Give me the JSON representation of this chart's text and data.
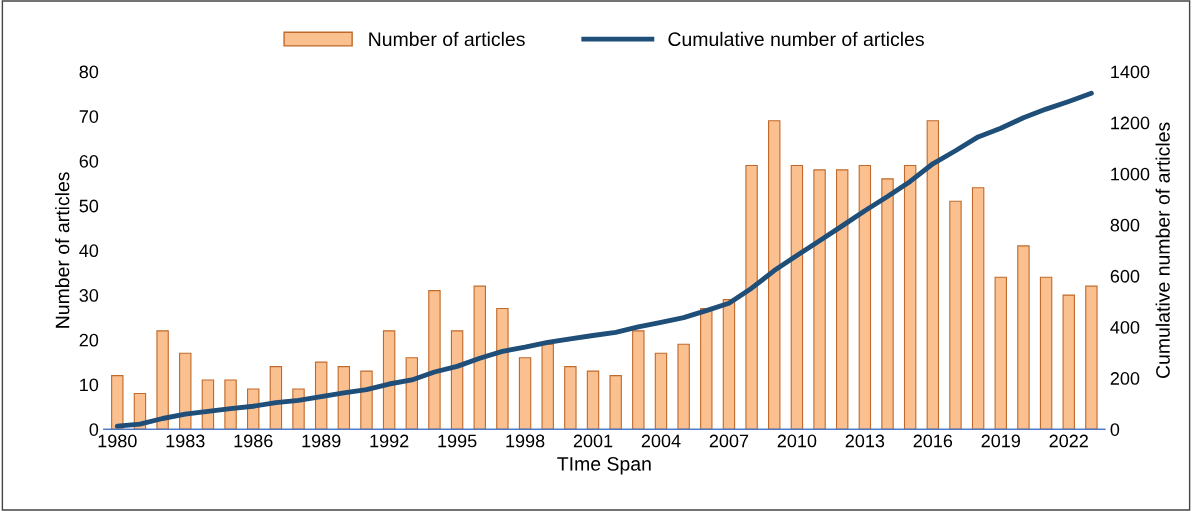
{
  "chart_data": {
    "type": "bar",
    "xlabel": "TIme Span",
    "ylabel": "Number of articles",
    "y2label": "Cumulative number of articles",
    "categories": [
      "1980",
      null,
      null,
      "1983",
      null,
      null,
      "1986",
      null,
      null,
      "1989",
      null,
      null,
      "1992",
      null,
      null,
      "1995",
      null,
      null,
      "1998",
      null,
      null,
      "2001",
      null,
      null,
      "2004",
      null,
      null,
      "2007",
      null,
      null,
      "2010",
      null,
      null,
      "2013",
      null,
      null,
      "2016",
      null,
      null,
      "2019",
      null,
      null,
      "2022",
      null
    ],
    "series": [
      {
        "name": "Number of articles",
        "color": "#fac090",
        "values": [
          12,
          8,
          22,
          17,
          11,
          11,
          9,
          14,
          9,
          15,
          14,
          13,
          22,
          16,
          31,
          22,
          32,
          27,
          16,
          19,
          14,
          13,
          12,
          22,
          17,
          19,
          27,
          29,
          59,
          69,
          59,
          58,
          58,
          59,
          56,
          59,
          69,
          51,
          54,
          34,
          41,
          34,
          30,
          32
        ]
      },
      {
        "name": "Cumulative number of articles",
        "type": "line",
        "axis": "y2",
        "color": "#1f4e79",
        "values": [
          12,
          20,
          42,
          59,
          70,
          81,
          90,
          104,
          113,
          128,
          142,
          155,
          177,
          193,
          224,
          246,
          278,
          305,
          321,
          340,
          354,
          367,
          379,
          401,
          418,
          437,
          464,
          493,
          552,
          621,
          680,
          738,
          796,
          855,
          911,
          970,
          1039,
          1090,
          1144,
          1178,
          1219,
          1253,
          1283,
          1315
        ]
      }
    ],
    "ylim": [
      0,
      80
    ],
    "yticks": [
      0,
      10,
      20,
      30,
      40,
      50,
      60,
      70,
      80
    ],
    "y2lim": [
      0,
      1400
    ],
    "y2ticks": [
      0,
      200,
      400,
      600,
      800,
      1000,
      1200,
      1400
    ],
    "grid": false,
    "legend": "top",
    "marker": "none",
    "line_style": "solid"
  }
}
